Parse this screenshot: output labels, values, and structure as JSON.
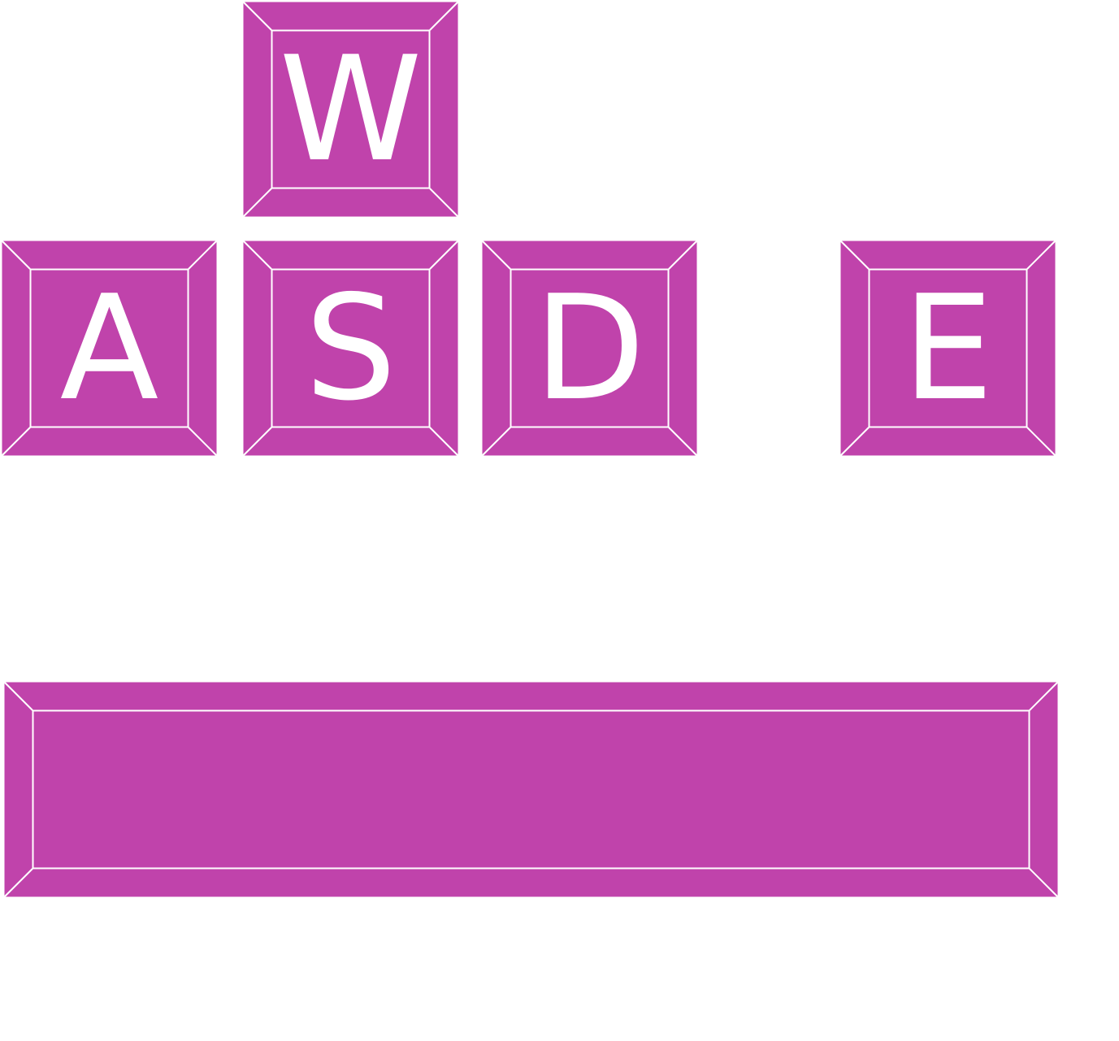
{
  "colors": {
    "key_fill": "#c043ab",
    "key_edge": "#ffffff",
    "label": "#ffffff",
    "background": "#ffffff"
  },
  "keys": {
    "w": {
      "label": "W"
    },
    "a": {
      "label": "A"
    },
    "s": {
      "label": "S"
    },
    "d": {
      "label": "D"
    },
    "e": {
      "label": "E"
    },
    "space": {
      "label": ""
    }
  }
}
